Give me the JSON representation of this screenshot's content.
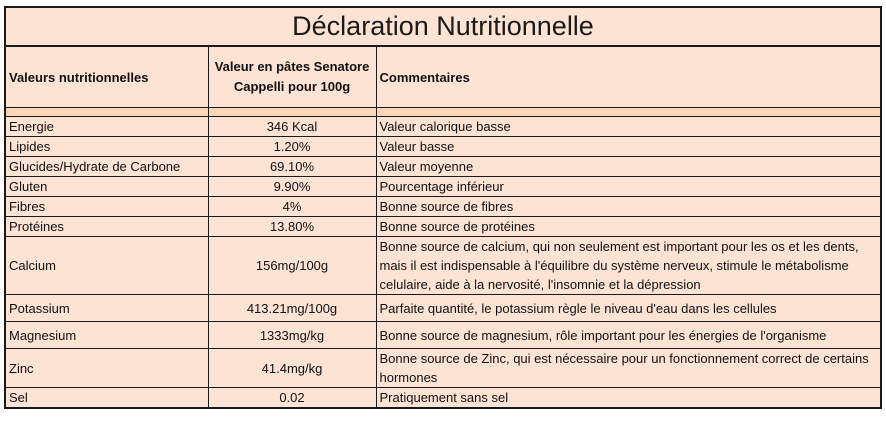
{
  "title": "Déclaration Nutritionnelle",
  "headers": {
    "col1": "Valeurs nutritionnelles",
    "col2_line1": "Valeur en pâtes Senatore",
    "col2_line2": "Cappelli pour 100g",
    "col3": "Commentaires"
  },
  "rows": [
    {
      "name": "Energie",
      "value": "346 Kcal",
      "comment": "Valeur calorique basse"
    },
    {
      "name": "Lipides",
      "value": "1.20%",
      "comment": "Valeur basse"
    },
    {
      "name": "Glucides/Hydrate de Carbone",
      "value": "69.10%",
      "comment": "Valeur moyenne"
    },
    {
      "name": "Gluten",
      "value": "9.90%",
      "comment": "Pourcentage inférieur"
    },
    {
      "name": "Fibres",
      "value": "4%",
      "comment": "Bonne source de fibres"
    },
    {
      "name": "Protéines",
      "value": "13.80%",
      "comment": "Bonne source de protéines"
    },
    {
      "name": "Calcium",
      "value": "156mg/100g",
      "comment": "Bonne source de calcium, qui non seulement est important pour les os et les dents, mais il est indispensable à l'équilibre du système nerveux, stimule le métabolisme celulaire, aide à la nervosité, l'insomnie et la dépression"
    },
    {
      "name": "Potassium",
      "value": "413.21mg/100g",
      "comment": "Parfaite quantité, le potassium règle le niveau d'eau dans les cellules"
    },
    {
      "name": "Magnesium",
      "value": "1333mg/kg",
      "comment": "Bonne source de magnesium, rôle important pour les énergies de l'organisme"
    },
    {
      "name": "Zinc",
      "value": "41.4mg/kg",
      "comment": "Bonne source de Zinc, qui est nécessaire pour un fonctionnement correct de certains hormones"
    },
    {
      "name": "Sel",
      "value": "0.02",
      "comment": "Pratiquement sans sel"
    }
  ]
}
